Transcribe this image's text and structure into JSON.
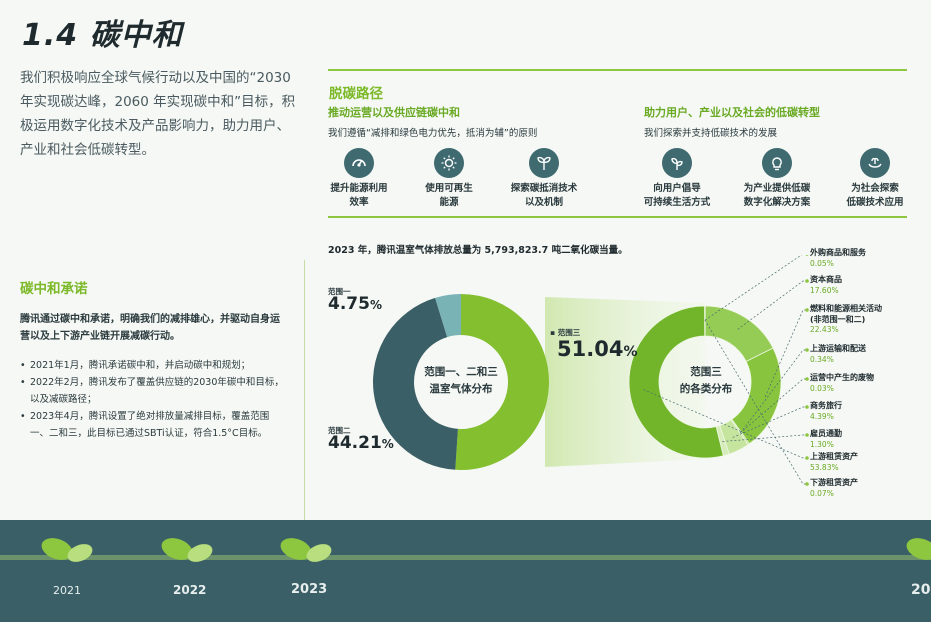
{
  "page_title": "1.4 碳中和",
  "intro": "我们积极响应全球气候行动以及中国的“2030年实现碳达峰，2060 年实现碳中和”目标，积极运用数字化技术及产品影响力，助力用户、产业和社会低碳转型。",
  "pledge": {
    "title": "碳中和承诺",
    "body": "腾讯通过碳中和承诺，明确我们的减排雄心，并驱动自身运营以及上下游产业链开展减碳行动。",
    "items": [
      "2021年1月，腾讯承诺碳中和，并启动碳中和规划；",
      "2022年2月，腾讯发布了覆盖供应链的2030年碳中和目标，以及减碳路径；",
      "2023年4月，腾讯设置了绝对排放量减排目标，覆盖范围一、二和三，此目标已通过SBTi认证，符合1.5°C目标。"
    ]
  },
  "path": {
    "title": "脱碳路径",
    "left": {
      "heading": "推动运营以及供应链碳中和",
      "desc": "我们遵循“减排和绿色电力优先，抵消为辅”的原则",
      "items": [
        {
          "icon": "gauge-icon",
          "l1": "提升能源利用",
          "l2": "效率"
        },
        {
          "icon": "sun-icon",
          "l1": "使用可再生",
          "l2": "能源"
        },
        {
          "icon": "sprout-icon",
          "l1": "探索碳抵消技术",
          "l2": "以及机制"
        }
      ]
    },
    "right": {
      "heading": "助力用户、产业以及社会的低碳转型",
      "desc": "我们探索并支持低碳技术的发展",
      "items": [
        {
          "icon": "plant-icon",
          "l1": "向用户倡导",
          "l2": "可持续生活方式"
        },
        {
          "icon": "lightbulb-icon",
          "l1": "为产业提供低碳",
          "l2": "数字化解决方案"
        },
        {
          "icon": "hands-plant-icon",
          "l1": "为社会探索",
          "l2": "低碳技术应用"
        }
      ]
    }
  },
  "total_text": "2023 年，腾讯温室气体排放总量为 5,793,823.7 吨二氧化碳当量。",
  "chart_data": [
    {
      "type": "pie",
      "center": [
        "范围一、二和三",
        "温室气体分布"
      ],
      "unit": "%",
      "slices": [
        {
          "name": "范围三",
          "value": 51.04,
          "label": "51.04",
          "color": "#84bf2f"
        },
        {
          "name": "范围二",
          "value": 44.21,
          "label": "44.21",
          "color": "#3b5f66"
        },
        {
          "name": "范围一",
          "value": 4.75,
          "label": "4.75",
          "color": "#7ab3b6"
        }
      ]
    },
    {
      "type": "pie",
      "center": [
        "范围三",
        "的各类分布"
      ],
      "slices": [
        {
          "name": "外购商品和服务",
          "value": 0.05,
          "label": "0.05%"
        },
        {
          "name": "资本商品",
          "value": 17.6,
          "label": "17.60%"
        },
        {
          "name": "燃料和能源相关活动",
          "name2": "(非范围一和二)",
          "value": 22.43,
          "label": "22.43%"
        },
        {
          "name": "上游运输和配送",
          "value": 0.34,
          "label": "0.34%"
        },
        {
          "name": "运营中产生的废物",
          "value": 0.03,
          "label": "0.03%"
        },
        {
          "name": "商务旅行",
          "value": 4.39,
          "label": "4.39%"
        },
        {
          "name": "雇员通勤",
          "value": 1.3,
          "label": "1.30%"
        },
        {
          "name": "上游租赁资产",
          "value": 53.83,
          "label": "53.83%"
        },
        {
          "name": "下游租赁资产",
          "value": 0.07,
          "label": "0.07%"
        }
      ]
    }
  ],
  "timeline": {
    "years": [
      "2021",
      "2022",
      "2023",
      "20"
    ]
  }
}
